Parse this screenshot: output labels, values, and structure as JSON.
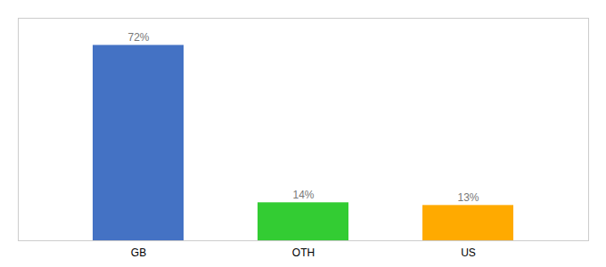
{
  "chart_data": {
    "type": "bar",
    "categories": [
      "GB",
      "OTH",
      "US"
    ],
    "values": [
      72,
      14,
      13
    ],
    "value_labels": [
      "72%",
      "14%",
      "13%"
    ],
    "colors": [
      "#4472c4",
      "#33cc33",
      "#ffaa00"
    ],
    "ylim": [
      0,
      82
    ],
    "data_labels": true,
    "tick_labels": "x"
  }
}
